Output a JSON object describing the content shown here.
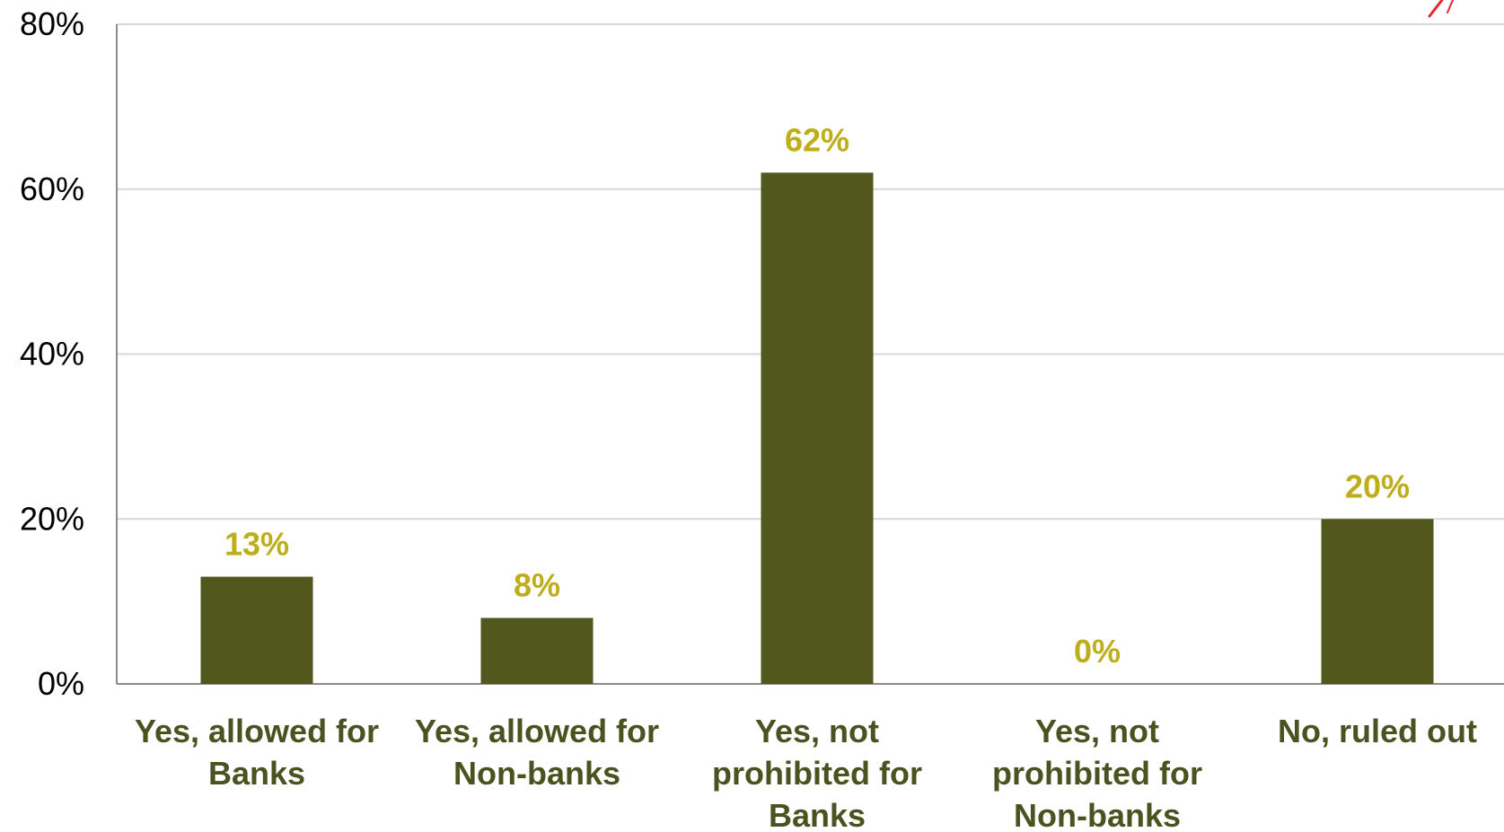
{
  "chart_data": {
    "type": "bar",
    "categories": [
      [
        "Yes, allowed for",
        "Banks"
      ],
      [
        "Yes, allowed for",
        "Non-banks"
      ],
      [
        "Yes, not",
        "prohibited for",
        "Banks"
      ],
      [
        "Yes, not",
        "prohibited for",
        "Non-banks"
      ],
      [
        "No, ruled out"
      ]
    ],
    "values": [
      13,
      8,
      62,
      0,
      20
    ],
    "data_labels": [
      "13%",
      "8%",
      "62%",
      "0%",
      "20%"
    ],
    "y_ticks": [
      0,
      20,
      40,
      60,
      80
    ],
    "y_tick_labels": [
      "0%",
      "20%",
      "40%",
      "60%",
      "80%"
    ],
    "ylim": [
      0,
      80
    ],
    "grid": true,
    "legend": "none",
    "colors": {
      "bar": "#52571e",
      "data_label": "#bfae1c",
      "category_label": "#4a5220",
      "grid": "#d9d9d9",
      "axis": "#8c8c8c",
      "logo_accent": "#e8242e"
    }
  }
}
